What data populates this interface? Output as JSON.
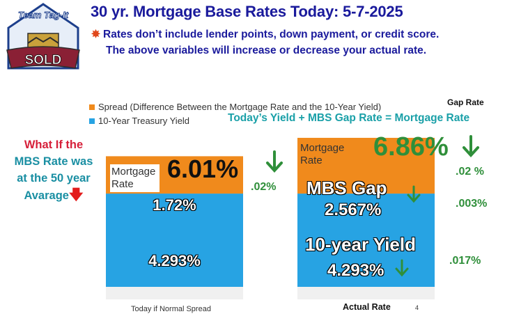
{
  "header": {
    "title": "30 yr. Mortgage Base Rates Today: 5-7-2025",
    "note_line1": "Rates don’t include lender points, down payment, or credit score.",
    "note_line2": "The above variables will increase or decrease your actual rate."
  },
  "logo": {
    "top_text": "Team Tag-It",
    "bottom_text": "SOLD"
  },
  "formula": "Today’s  Yield +  MBS Gap Rate = Mortgage Rate",
  "gap_rate_header": "Gap Rate",
  "what_if": {
    "line1": "What If the",
    "line2": "MBS Rate was",
    "line3": "at the 50 year",
    "line4": "Avarage"
  },
  "left_mortgage_label": "Mortgage\nRate",
  "right_mortgage_label": "Mortgage\nRate",
  "left_rate": "6.01%",
  "right_rate": "6.86%",
  "left_change": ".02%",
  "gap_changes": [
    ".02 %",
    ".003%",
    ".017%"
  ],
  "bar_labels": {
    "left_spread": "1.72%",
    "left_yield": "4.293%",
    "right_spread_title": "MBS Gap",
    "right_spread": "2.567%",
    "right_yield_title": "10-year Yield",
    "right_yield": "4.293%"
  },
  "stray_mark": "4",
  "colors": {
    "spread": "#f08a1c",
    "yield": "#27a3e3",
    "green": "#2f8f3a",
    "navy": "#1a1a9c",
    "red": "#d6203a",
    "teal": "#1aa0a8"
  },
  "chart_data": {
    "type": "bar",
    "stacked": true,
    "categories": [
      "Today if Normal Spread",
      "Actual Rate"
    ],
    "series": [
      {
        "name": "10-Year Treasury Yield",
        "values": [
          4.293,
          4.293
        ]
      },
      {
        "name": "Spread (Difference Between the Mortgage Rate and the 10-Year Yield)",
        "values": [
          1.72,
          2.567
        ]
      }
    ],
    "legend_position": "top-left",
    "grid": false
  }
}
